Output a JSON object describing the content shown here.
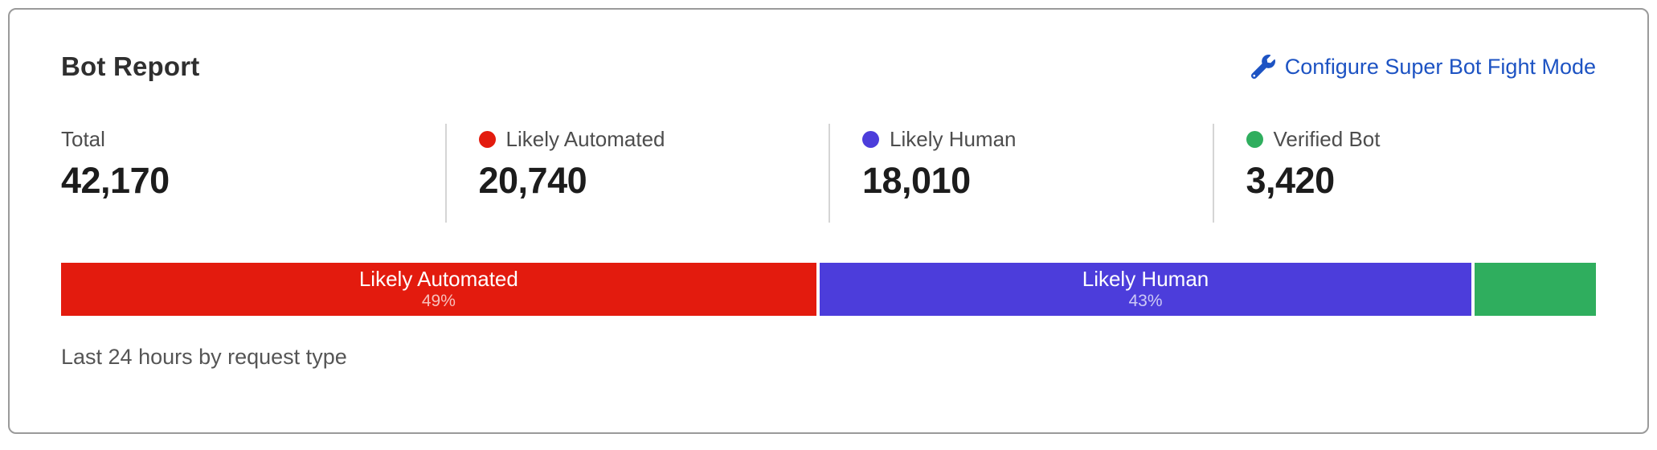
{
  "card": {
    "title": "Bot Report",
    "configure_link": {
      "label": "Configure Super Bot Fight Mode",
      "icon": "wrench-icon",
      "color": "#1d53c3"
    },
    "stats": [
      {
        "label": "Total",
        "value": "42,170"
      },
      {
        "label": "Likely Automated",
        "value": "20,740",
        "dot_color": "#e31b0e"
      },
      {
        "label": "Likely Human",
        "value": "18,010",
        "dot_color": "#4c3ddb"
      },
      {
        "label": "Verified Bot",
        "value": "3,420",
        "dot_color": "#2fae5e"
      }
    ],
    "footer": "Last 24 hours by request type"
  },
  "chart_data": {
    "type": "bar",
    "title": "Bot Report",
    "subtitle": "Last 24 hours by request type",
    "total": 42170,
    "orientation": "horizontal-stacked",
    "segments": [
      {
        "name": "Likely Automated",
        "value": 20740,
        "pct_label": "49%",
        "width_pct": 49.2,
        "color": "#e31b0e",
        "label_visible": true
      },
      {
        "name": "Likely Human",
        "value": 18010,
        "pct_label": "43%",
        "width_pct": 42.7,
        "color": "#4c3ddb",
        "label_visible": true
      },
      {
        "name": "Verified Bot",
        "value": 3420,
        "pct_label": "8%",
        "width_pct": 8.1,
        "color": "#2fae5e",
        "label_visible": false
      }
    ]
  }
}
